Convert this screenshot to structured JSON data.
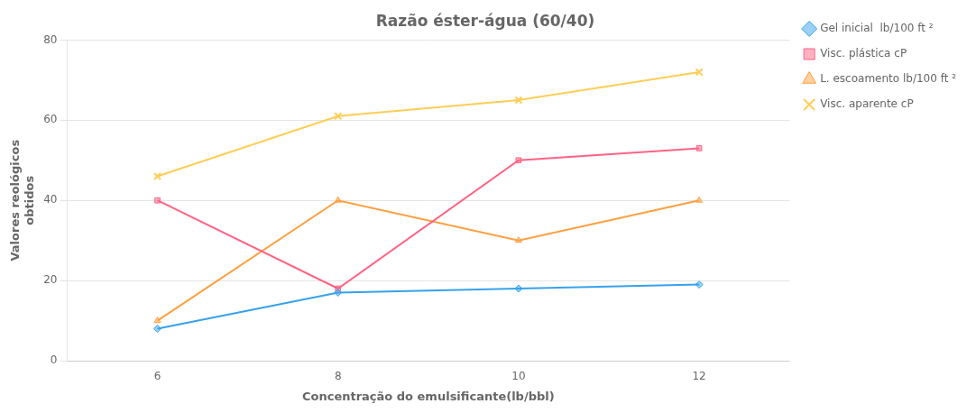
{
  "chart_data": {
    "type": "line",
    "title": "Razão éster-água (60/40)",
    "xlabel": "Concentração do emulsificante(lb/bbl)",
    "ylabel": "Valores reológicos\nobtidos",
    "x": [
      6,
      8,
      10,
      12
    ],
    "series": [
      {
        "name": "Gel inicial  lb/100 ft ²",
        "marker": "diamond",
        "line_style": "solid",
        "values": [
          8,
          17,
          18,
          19
        ]
      },
      {
        "name": "Visc. plástica cP",
        "marker": "square",
        "line_style": "solid",
        "values": [
          40,
          18,
          50,
          53
        ]
      },
      {
        "name": "L. escoamento lb/100 ft ²",
        "marker": "triangle",
        "line_style": "solid",
        "values": [
          10,
          40,
          30,
          40
        ]
      },
      {
        "name": "Visc. aparente cP",
        "marker": "x",
        "line_style": "solid",
        "values": [
          46,
          61,
          65,
          72
        ]
      }
    ],
    "xlim": [
      5.0,
      13.0
    ],
    "xticks": [
      6,
      8,
      10,
      12
    ],
    "ylim": [
      0,
      80
    ],
    "yticks": [
      0,
      20,
      40,
      60,
      80
    ],
    "grid": "y",
    "legend": "right"
  }
}
